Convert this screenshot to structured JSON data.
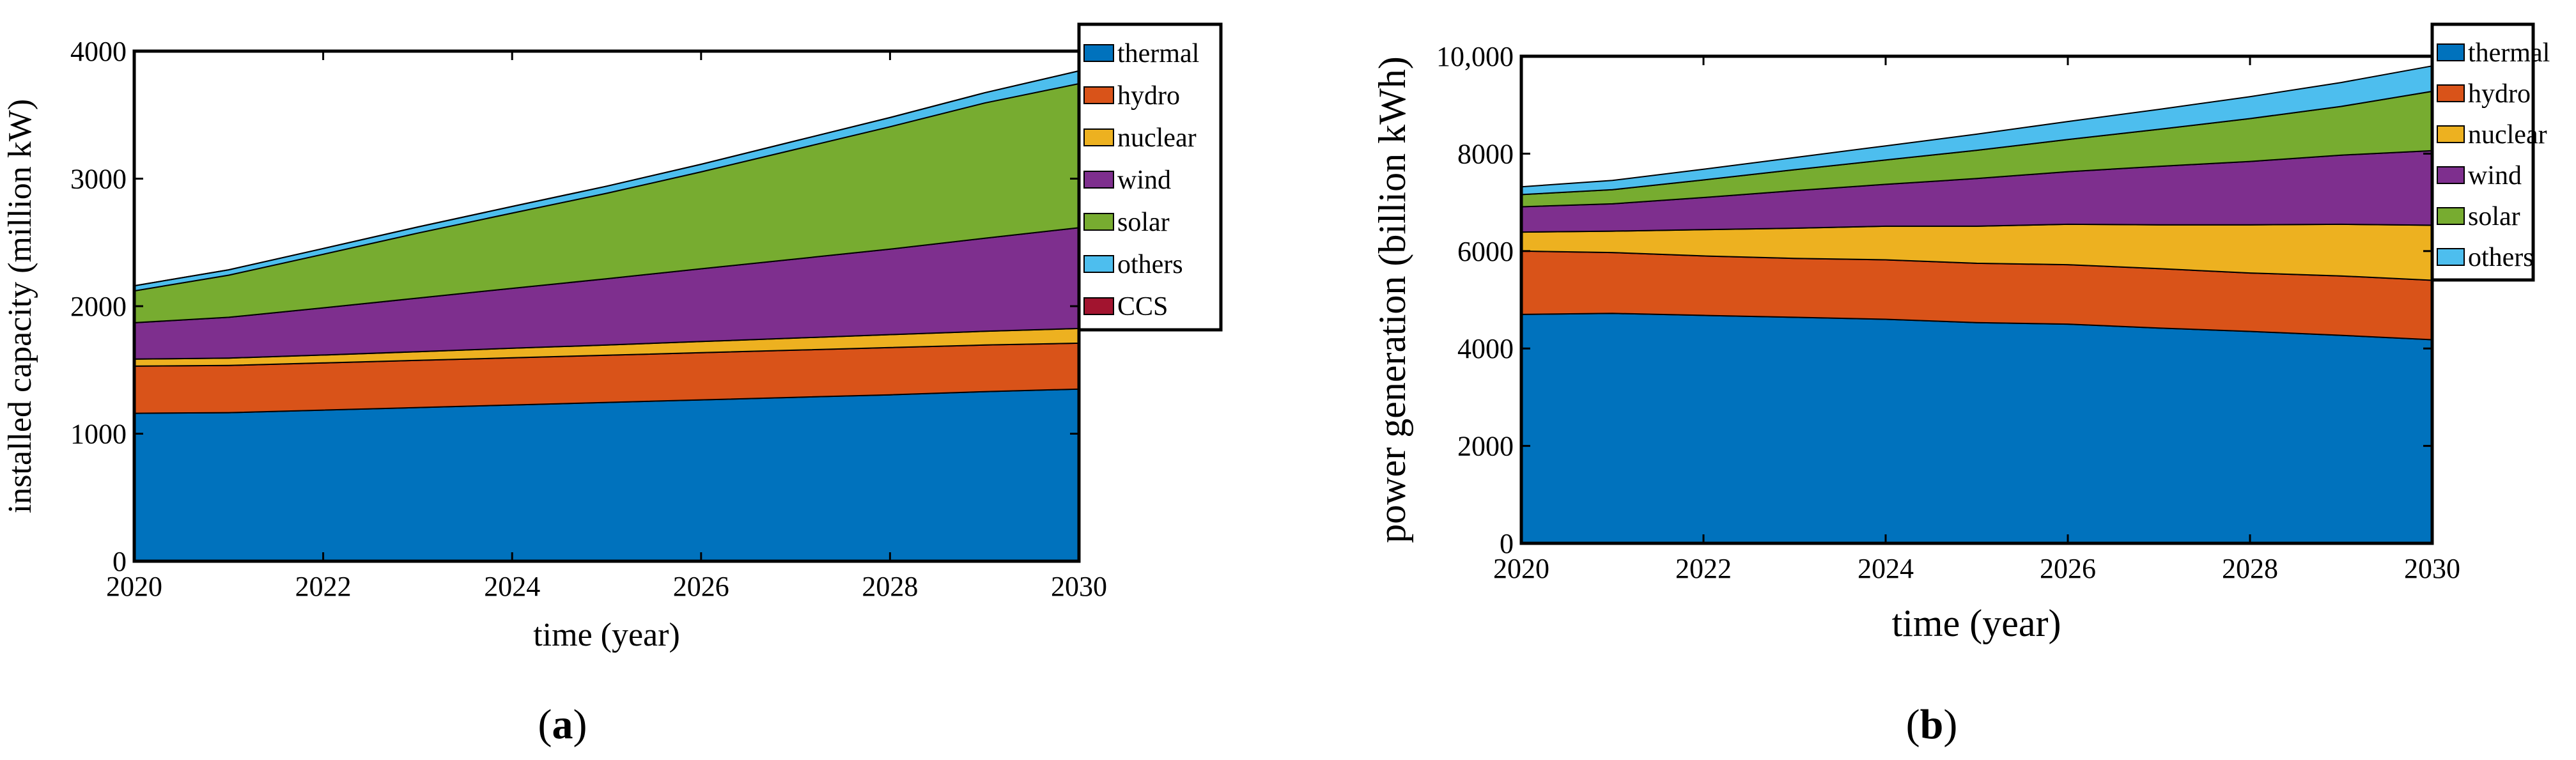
{
  "chart_data": [
    {
      "type": "area",
      "stacked": true,
      "x": [
        2020,
        2021,
        2022,
        2023,
        2024,
        2025,
        2026,
        2027,
        2028,
        2029,
        2030
      ],
      "series": [
        {
          "name": "thermal",
          "color": "#0072BD",
          "values": [
            1160,
            1165,
            1185,
            1205,
            1225,
            1245,
            1265,
            1285,
            1305,
            1330,
            1350
          ]
        },
        {
          "name": "hydro",
          "color": "#D95319",
          "values": [
            370,
            370,
            370,
            370,
            370,
            370,
            370,
            370,
            370,
            365,
            360
          ]
        },
        {
          "name": "nuclear",
          "color": "#EDB120",
          "values": [
            55,
            58,
            62,
            68,
            75,
            80,
            88,
            95,
            102,
            108,
            115
          ]
        },
        {
          "name": "wind",
          "color": "#7E2F8E",
          "values": [
            285,
            320,
            370,
            420,
            470,
            520,
            570,
            620,
            670,
            730,
            790
          ]
        },
        {
          "name": "solar",
          "color": "#77AC30",
          "values": [
            250,
            330,
            420,
            510,
            590,
            670,
            760,
            860,
            960,
            1060,
            1130
          ]
        },
        {
          "name": "others",
          "color": "#4DBEEE",
          "values": [
            40,
            42,
            45,
            48,
            52,
            56,
            60,
            66,
            72,
            80,
            100
          ]
        },
        {
          "name": "CCS",
          "color": "#A2142F",
          "values": [
            0,
            0,
            0,
            0,
            0,
            0,
            0,
            0,
            0,
            0,
            0
          ]
        }
      ],
      "xlabel": "time (year)",
      "ylabel": "installed capacity (million kW)",
      "xlim": [
        2020,
        2030
      ],
      "ylim": [
        0,
        4000
      ],
      "xticks": [
        "2020",
        "2022",
        "2024",
        "2026",
        "2028",
        "2030"
      ],
      "yticks": [
        "0",
        "1000",
        "2000",
        "3000",
        "4000"
      ],
      "legend_position": "top-right",
      "panel_label": {
        "open": "(",
        "letter": "a",
        "close": ")"
      }
    },
    {
      "type": "area",
      "stacked": true,
      "x": [
        2020,
        2021,
        2022,
        2023,
        2024,
        2025,
        2026,
        2027,
        2028,
        2029,
        2030
      ],
      "series": [
        {
          "name": "thermal",
          "color": "#0072BD",
          "values": [
            4700,
            4720,
            4680,
            4640,
            4600,
            4530,
            4500,
            4420,
            4350,
            4270,
            4180
          ]
        },
        {
          "name": "hydro",
          "color": "#D95319",
          "values": [
            1300,
            1250,
            1220,
            1210,
            1220,
            1220,
            1220,
            1220,
            1200,
            1220,
            1220
          ]
        },
        {
          "name": "nuclear",
          "color": "#EDB120",
          "values": [
            390,
            440,
            540,
            620,
            690,
            760,
            830,
            900,
            990,
            1060,
            1130
          ]
        },
        {
          "name": "wind",
          "color": "#7E2F8E",
          "values": [
            520,
            560,
            660,
            770,
            860,
            980,
            1080,
            1200,
            1300,
            1420,
            1530
          ]
        },
        {
          "name": "solar",
          "color": "#77AC30",
          "values": [
            250,
            290,
            360,
            430,
            500,
            580,
            660,
            760,
            880,
            1000,
            1220
          ]
        },
        {
          "name": "others",
          "color": "#4DBEEE",
          "values": [
            160,
            190,
            220,
            250,
            290,
            330,
            370,
            410,
            450,
            490,
            520
          ]
        }
      ],
      "xlabel": "time (year)",
      "ylabel": "power generation (billion kWh)",
      "xlim": [
        2020,
        2030
      ],
      "ylim": [
        0,
        10000
      ],
      "xticks": [
        "2020",
        "2022",
        "2024",
        "2026",
        "2028",
        "2030"
      ],
      "yticks": [
        "0",
        "2000",
        "4000",
        "6000",
        "8000",
        "10,000"
      ],
      "legend_position": "top-right",
      "panel_label": {
        "open": "(",
        "letter": "b",
        "close": ")"
      }
    }
  ]
}
